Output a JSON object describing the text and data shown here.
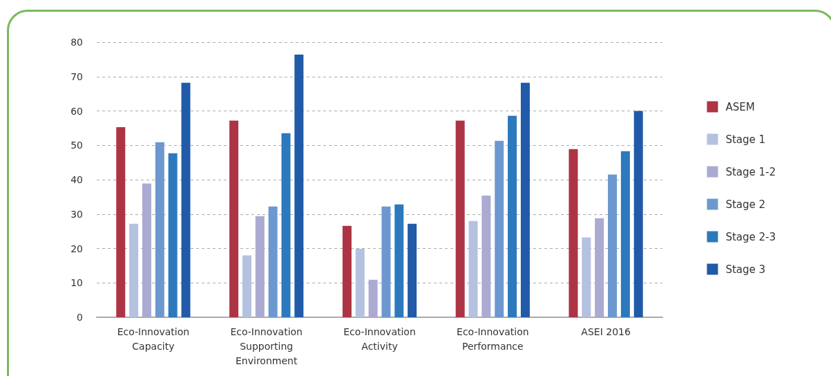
{
  "chart_data": {
    "type": "bar",
    "categories": [
      "Eco-Innovation\nCapacity",
      "Eco-Innovation\nSupporting\nEnvironment",
      "Eco-Innovation\nActivity",
      "Eco-Innovation\nPerformance",
      "ASEI 2016"
    ],
    "series": [
      {
        "name": "ASEM",
        "color": "#ad3444",
        "values": [
          55.3,
          57.2,
          26.6,
          57.2,
          48.9
        ]
      },
      {
        "name": "Stage 1",
        "color": "#b4c1e1",
        "values": [
          27.2,
          18.0,
          19.9,
          28.0,
          23.2
        ]
      },
      {
        "name": "Stage 1-2",
        "color": "#aaaad2",
        "values": [
          38.9,
          29.4,
          10.9,
          35.4,
          28.8
        ]
      },
      {
        "name": "Stage 2",
        "color": "#6d98cf",
        "values": [
          50.9,
          32.2,
          32.2,
          51.3,
          41.5
        ]
      },
      {
        "name": "Stage 2-3",
        "color": "#2c79bd",
        "values": [
          47.7,
          53.5,
          32.8,
          58.6,
          48.3
        ]
      },
      {
        "name": "Stage 3",
        "color": "#205aa8",
        "values": [
          68.2,
          76.4,
          27.2,
          68.2,
          60.0
        ]
      }
    ],
    "ylim": [
      0,
      80
    ],
    "yticks": [
      0,
      10,
      20,
      30,
      40,
      50,
      60,
      70,
      80
    ],
    "grid": "y",
    "legend": "right"
  }
}
